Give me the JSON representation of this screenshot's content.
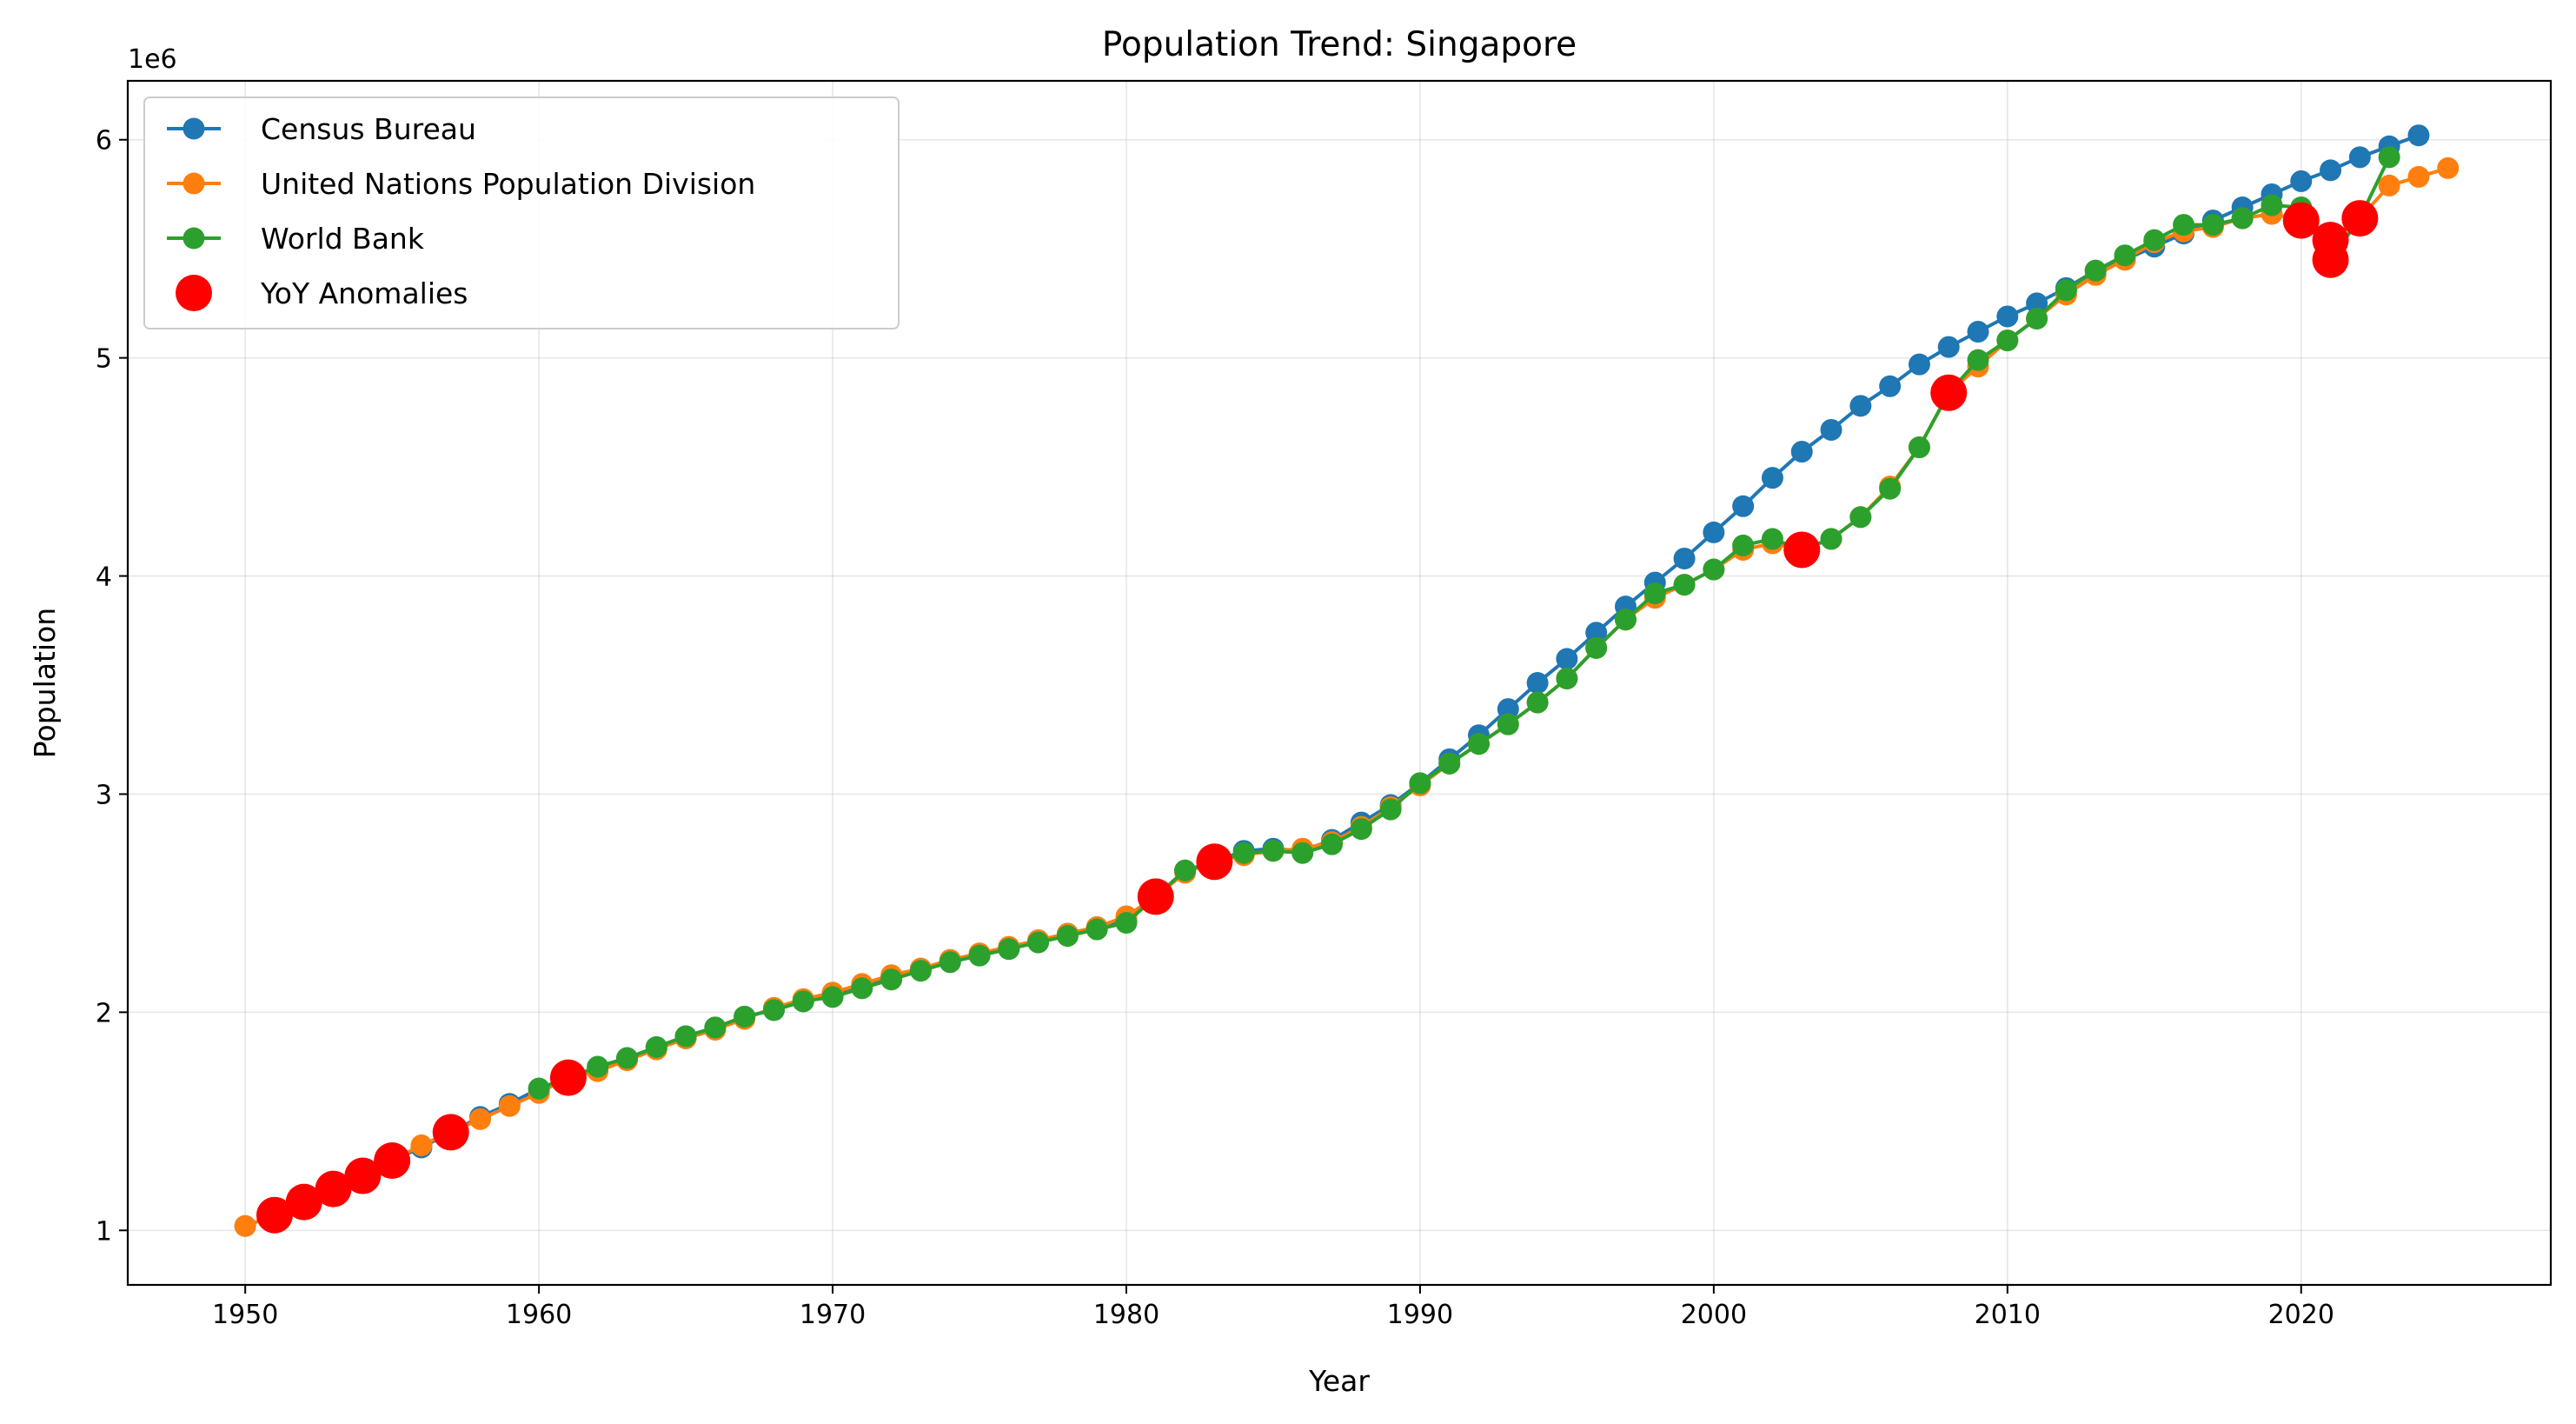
{
  "chart_data": {
    "type": "line",
    "title": "Population Trend: Singapore",
    "xlabel": "Year",
    "ylabel": "Population",
    "y_offset_label": "1e6",
    "xlim": [
      1946,
      2028.5
    ],
    "ylim": [
      0.75,
      6.27
    ],
    "x_ticks": [
      1950,
      1960,
      1970,
      1980,
      1990,
      2000,
      2010,
      2020
    ],
    "y_ticks": [
      1,
      2,
      3,
      4,
      5,
      6
    ],
    "grid": true,
    "legend_position": "upper-left",
    "series": [
      {
        "name": "Census Bureau",
        "color": "#1f77b4",
        "x": [
          1950,
          1951,
          1952,
          1953,
          1954,
          1955,
          1956,
          1957,
          1958,
          1959,
          1960,
          1961,
          1962,
          1963,
          1964,
          1965,
          1966,
          1967,
          1968,
          1969,
          1970,
          1971,
          1972,
          1973,
          1974,
          1975,
          1976,
          1977,
          1978,
          1979,
          1980,
          1981,
          1982,
          1983,
          1984,
          1985,
          1986,
          1987,
          1988,
          1989,
          1990,
          1991,
          1992,
          1993,
          1994,
          1995,
          1996,
          1997,
          1998,
          1999,
          2000,
          2001,
          2002,
          2003,
          2004,
          2005,
          2006,
          2007,
          2008,
          2009,
          2010,
          2011,
          2012,
          2013,
          2014,
          2015,
          2016,
          2017,
          2018,
          2019,
          2020,
          2021,
          2022,
          2023,
          2024
        ],
        "y": [
          1.02,
          1.07,
          1.13,
          1.19,
          1.25,
          1.32,
          1.38,
          1.45,
          1.52,
          1.58,
          1.65,
          1.7,
          1.75,
          1.79,
          1.84,
          1.89,
          1.93,
          1.98,
          2.01,
          2.05,
          2.08,
          2.12,
          2.16,
          2.2,
          2.23,
          2.26,
          2.29,
          2.33,
          2.36,
          2.39,
          2.42,
          2.53,
          2.65,
          2.69,
          2.74,
          2.75,
          2.74,
          2.79,
          2.87,
          2.95,
          3.05,
          3.16,
          3.27,
          3.39,
          3.51,
          3.62,
          3.74,
          3.86,
          3.97,
          4.08,
          4.2,
          4.32,
          4.45,
          4.57,
          4.67,
          4.78,
          4.87,
          4.97,
          5.05,
          5.12,
          5.19,
          5.25,
          5.32,
          5.4,
          5.45,
          5.51,
          5.57,
          5.63,
          5.69,
          5.75,
          5.81,
          5.86,
          5.92,
          5.97,
          6.02
        ]
      },
      {
        "name": "United Nations Population Division",
        "color": "#ff7f0e",
        "x": [
          1950,
          1951,
          1952,
          1953,
          1954,
          1955,
          1956,
          1957,
          1958,
          1959,
          1960,
          1961,
          1962,
          1963,
          1964,
          1965,
          1966,
          1967,
          1968,
          1969,
          1970,
          1971,
          1972,
          1973,
          1974,
          1975,
          1976,
          1977,
          1978,
          1979,
          1980,
          1981,
          1982,
          1983,
          1984,
          1985,
          1986,
          1987,
          1988,
          1989,
          1990,
          1991,
          1992,
          1993,
          1994,
          1995,
          1996,
          1997,
          1998,
          1999,
          2000,
          2001,
          2002,
          2003,
          2004,
          2005,
          2006,
          2007,
          2008,
          2009,
          2010,
          2011,
          2012,
          2013,
          2014,
          2015,
          2016,
          2017,
          2018,
          2019,
          2020,
          2021,
          2022,
          2023,
          2024,
          2025
        ],
        "y": [
          1.02,
          1.07,
          1.13,
          1.19,
          1.25,
          1.32,
          1.39,
          1.45,
          1.51,
          1.57,
          1.63,
          1.7,
          1.73,
          1.78,
          1.83,
          1.88,
          1.92,
          1.97,
          2.02,
          2.06,
          2.09,
          2.13,
          2.17,
          2.2,
          2.24,
          2.27,
          2.3,
          2.33,
          2.36,
          2.39,
          2.44,
          2.53,
          2.64,
          2.69,
          2.72,
          2.74,
          2.75,
          2.78,
          2.85,
          2.94,
          3.04,
          3.14,
          3.23,
          3.32,
          3.42,
          3.53,
          3.67,
          3.8,
          3.9,
          3.96,
          4.03,
          4.12,
          4.15,
          4.12,
          4.17,
          4.27,
          4.41,
          4.59,
          4.84,
          4.96,
          5.08,
          5.18,
          5.29,
          5.38,
          5.45,
          5.53,
          5.58,
          5.6,
          5.64,
          5.66,
          5.63,
          5.54,
          5.64,
          5.79,
          5.83,
          5.87
        ]
      },
      {
        "name": "World Bank",
        "color": "#2ca02c",
        "x": [
          1960,
          1961,
          1962,
          1963,
          1964,
          1965,
          1966,
          1967,
          1968,
          1969,
          1970,
          1971,
          1972,
          1973,
          1974,
          1975,
          1976,
          1977,
          1978,
          1979,
          1980,
          1981,
          1982,
          1983,
          1984,
          1985,
          1986,
          1987,
          1988,
          1989,
          1990,
          1991,
          1992,
          1993,
          1994,
          1995,
          1996,
          1997,
          1998,
          1999,
          2000,
          2001,
          2002,
          2003,
          2004,
          2005,
          2006,
          2007,
          2008,
          2009,
          2010,
          2011,
          2012,
          2013,
          2014,
          2015,
          2016,
          2017,
          2018,
          2019,
          2020,
          2021,
          2022,
          2023
        ],
        "y": [
          1.65,
          1.7,
          1.75,
          1.79,
          1.84,
          1.89,
          1.93,
          1.98,
          2.01,
          2.05,
          2.07,
          2.11,
          2.15,
          2.19,
          2.23,
          2.26,
          2.29,
          2.32,
          2.35,
          2.38,
          2.41,
          2.53,
          2.65,
          2.69,
          2.73,
          2.74,
          2.73,
          2.77,
          2.84,
          2.93,
          3.05,
          3.14,
          3.23,
          3.32,
          3.42,
          3.53,
          3.67,
          3.8,
          3.92,
          3.96,
          4.03,
          4.14,
          4.17,
          4.12,
          4.17,
          4.27,
          4.4,
          4.59,
          4.84,
          4.99,
          5.08,
          5.18,
          5.31,
          5.4,
          5.47,
          5.54,
          5.61,
          5.61,
          5.64,
          5.7,
          5.69,
          5.45,
          5.64,
          5.92
        ]
      }
    ],
    "anomalies": {
      "name": "YoY Anomalies",
      "color": "#ff0000",
      "x": [
        1951,
        1952,
        1953,
        1954,
        1955,
        1957,
        1961,
        1981,
        1983,
        2003,
        2008,
        2020,
        2021,
        2021,
        2022
      ],
      "y": [
        1.07,
        1.13,
        1.19,
        1.25,
        1.32,
        1.45,
        1.7,
        2.53,
        2.69,
        4.12,
        4.84,
        5.63,
        5.54,
        5.45,
        5.64
      ]
    }
  }
}
